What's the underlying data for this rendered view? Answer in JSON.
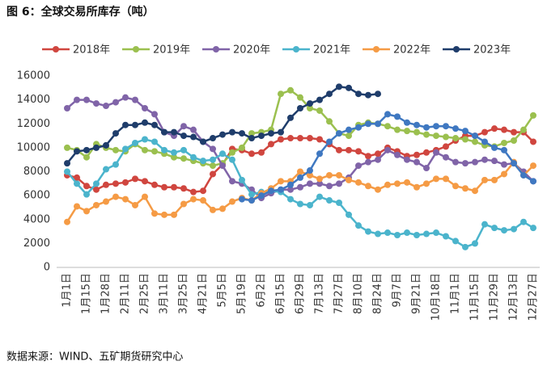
{
  "chart_data": {
    "type": "line",
    "title": "图 6：全球交易所库存（吨）",
    "source": "数据来源：WIND、五矿期货研究中心",
    "categories": [
      "1月1日",
      null,
      "1月15日",
      null,
      "1月28日",
      null,
      "2月11日",
      null,
      "2月25日",
      null,
      "3月11日",
      null,
      "3月25日",
      null,
      "4月21日",
      null,
      "5月5日",
      null,
      "5月19日",
      null,
      "6月2日",
      null,
      "6月15日",
      null,
      "6月29日",
      null,
      "7月13日",
      null,
      "7月27日",
      null,
      "8月10日",
      null,
      "8月24日",
      null,
      "9月7日",
      null,
      "9月21日",
      null,
      "10月18日",
      null,
      "11月1日",
      null,
      "11月15日",
      null,
      "11月29日",
      null,
      "12月13日",
      null,
      "12月27日"
    ],
    "ylim": [
      0,
      16000
    ],
    "yticks": [
      0,
      2000,
      4000,
      6000,
      8000,
      10000,
      12000,
      14000,
      16000
    ],
    "grid": false,
    "legend": "top",
    "series": [
      {
        "name": "2018年",
        "color": "#d0463f",
        "values": [
          7700,
          7500,
          6800,
          6500,
          6900,
          7000,
          7100,
          7400,
          7200,
          6900,
          6700,
          6700,
          6600,
          6300,
          6400,
          7800,
          8600,
          9900,
          9800,
          9500,
          9600,
          10300,
          10700,
          10800,
          10800,
          10800,
          10700,
          10300,
          9800,
          9800,
          9700,
          9300,
          9500,
          10000,
          9700,
          9300,
          9400,
          9600,
          9800,
          10100,
          10600,
          11000,
          11000,
          11300,
          11600,
          11500,
          11300,
          11300,
          10500
        ]
      },
      {
        "name": "2019年",
        "color": "#9bc04f",
        "values": [
          10000,
          9800,
          9200,
          10300,
          10000,
          9800,
          9700,
          10300,
          9800,
          9700,
          9500,
          9200,
          9100,
          8900,
          8700,
          8500,
          8700,
          9600,
          10000,
          11200,
          11300,
          11500,
          14500,
          14800,
          14200,
          13300,
          13100,
          12200,
          11200,
          11000,
          11900,
          12100,
          12000,
          11800,
          11500,
          11400,
          11300,
          11100,
          11000,
          10900,
          10800,
          10700,
          10500,
          10200,
          10100,
          10400,
          10600,
          11500,
          12700
        ]
      },
      {
        "name": "2020年",
        "color": "#8064a8",
        "values": [
          13300,
          14000,
          14000,
          13700,
          13500,
          13800,
          14200,
          14000,
          13300,
          12800,
          11300,
          11000,
          11800,
          11500,
          10500,
          9900,
          8500,
          7200,
          7000,
          6500,
          5800,
          6200,
          6500,
          6500,
          6700,
          7000,
          7000,
          6800,
          7000,
          7500,
          8500,
          8800,
          9000,
          9800,
          9400,
          9000,
          8800,
          8300,
          9600,
          9200,
          8800,
          8700,
          8800,
          9000,
          8900,
          8600,
          8700,
          8000,
          7200
        ]
      },
      {
        "name": "2021年",
        "color": "#4bb4cc",
        "values": [
          8000,
          7000,
          6100,
          7000,
          8200,
          8600,
          9900,
          10400,
          10700,
          10500,
          9800,
          9600,
          9800,
          9200,
          8900,
          9000,
          9500,
          9000,
          7300,
          6100,
          6300,
          6400,
          6300,
          5700,
          5300,
          5200,
          5900,
          5600,
          5400,
          4400,
          3500,
          3000,
          2800,
          2900,
          2700,
          2900,
          2700,
          2800,
          2900,
          2600,
          2200,
          1700,
          2000,
          3600,
          3300,
          3100,
          3200,
          3800,
          3300
        ]
      },
      {
        "name": "2022年",
        "color": "#f59b45",
        "values": [
          3800,
          5100,
          4700,
          5200,
          5500,
          5900,
          5700,
          5200,
          5900,
          4500,
          4400,
          4400,
          5300,
          5700,
          5600,
          4800,
          4900,
          5500,
          5800,
          5600,
          6200,
          6600,
          7200,
          7200,
          8000,
          7700,
          7400,
          7700,
          7700,
          7300,
          7100,
          6800,
          6500,
          6900,
          7000,
          7100,
          6700,
          7000,
          7400,
          7400,
          6800,
          6600,
          6400,
          7300,
          7300,
          7800,
          8800,
          7700,
          8500
        ]
      },
      {
        "name": "2023年",
        "color": "#1f3d6b",
        "values": [
          8700,
          9700,
          9800,
          10000,
          10200,
          11200,
          11900,
          11900,
          12100,
          11900,
          11300,
          11300,
          11000,
          10900,
          10500,
          10800,
          11100,
          11300,
          11200,
          10800,
          11000,
          11200,
          11300,
          12500,
          13300,
          13700,
          14000,
          14500,
          15100,
          15000,
          14500,
          14400,
          14500,
          null,
          null,
          null,
          null,
          null,
          null,
          null,
          null,
          null,
          null,
          null,
          null,
          null,
          null,
          null,
          null
        ]
      },
      {
        "color": "#3f78c1",
        "values": [
          null,
          null,
          null,
          null,
          null,
          null,
          null,
          null,
          null,
          null,
          null,
          null,
          null,
          null,
          null,
          null,
          null,
          null,
          5700,
          5600,
          6000,
          6400,
          6500,
          6900,
          7500,
          8100,
          9500,
          10500,
          11200,
          11500,
          11700,
          12000,
          12000,
          12800,
          12600,
          12100,
          11900,
          11700,
          11800,
          11800,
          11600,
          11400,
          11000,
          10500,
          10000,
          9800,
          8700,
          7700,
          7200
        ]
      }
    ]
  }
}
